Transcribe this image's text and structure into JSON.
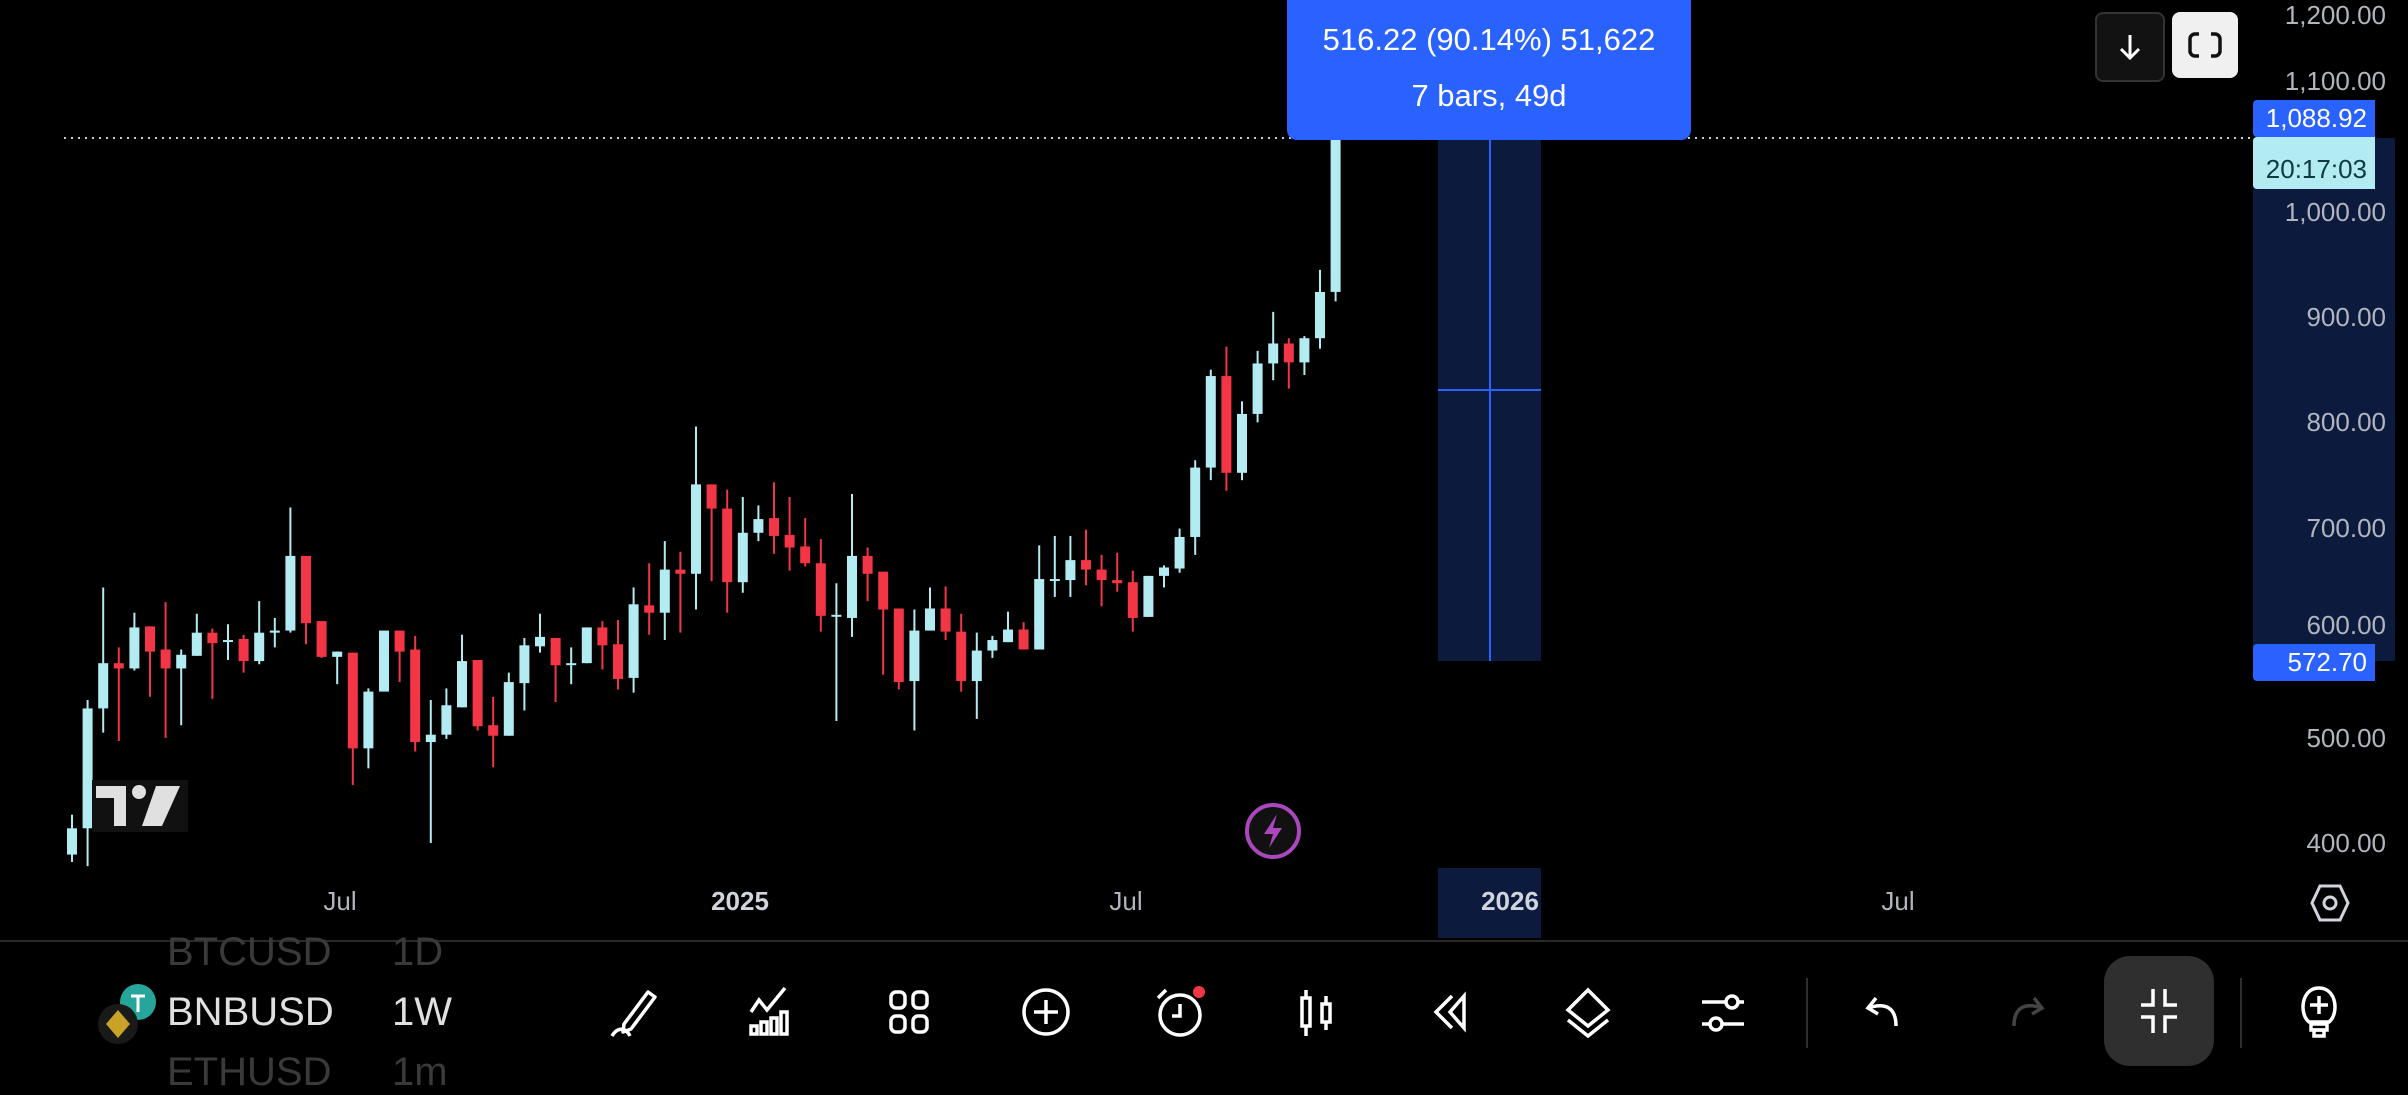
{
  "measure_tooltip": {
    "line1": "516.22 (90.14%) 51,622",
    "line2": "7 bars, 49d"
  },
  "price_axis": {
    "ticks": [
      "1,200.00",
      "1,100.00",
      "1,000.00",
      "900.00",
      "800.00",
      "700.00",
      "600.00",
      "500.00",
      "400.00"
    ],
    "measure_high_label": "1,088.92",
    "measure_low_label": "572.70",
    "countdown": "20:17:03"
  },
  "time_axis": {
    "ticks": [
      {
        "label": "Jul",
        "bold": false
      },
      {
        "label": "2025",
        "bold": true
      },
      {
        "label": "Jul",
        "bold": false
      },
      {
        "label": "2026",
        "bold": true
      },
      {
        "label": "Jul",
        "bold": false
      }
    ]
  },
  "top_buttons": {
    "scroll_down": "arrow-down-icon",
    "fullscreen": "fullscreen-icon"
  },
  "symbols": {
    "previous": {
      "ticker": "BTCUSD",
      "interval": "1D"
    },
    "current": {
      "ticker": "BNBUSD",
      "interval": "1W"
    },
    "next": {
      "ticker": "ETHUSD",
      "interval": "1m"
    }
  },
  "toolbar": [
    {
      "name": "drawing-tools",
      "icon": "pencil-icon"
    },
    {
      "name": "indicators",
      "icon": "indicator-chart-icon"
    },
    {
      "name": "layouts",
      "icon": "grid-icon"
    },
    {
      "name": "add",
      "icon": "plus-circle-icon"
    },
    {
      "name": "alerts",
      "icon": "alarm-clock-icon"
    },
    {
      "name": "chart-type",
      "icon": "candles-icon"
    },
    {
      "name": "replay",
      "icon": "rewind-icon"
    },
    {
      "name": "object-tree",
      "icon": "layers-icon"
    },
    {
      "name": "settings",
      "icon": "sliders-icon"
    },
    {
      "name": "undo",
      "icon": "undo-icon"
    },
    {
      "name": "redo",
      "icon": "redo-icon"
    },
    {
      "name": "exit-fullscreen",
      "icon": "collapse-icon"
    },
    {
      "name": "ideas",
      "icon": "lightbulb-plus-icon"
    }
  ],
  "colors": {
    "bull": "#b2ebf2",
    "bear": "#f23645",
    "accent": "#2962ff",
    "measure_fill": "#0b1a3d",
    "bolt": "#ab47bc"
  },
  "chart_data": {
    "type": "candlestick",
    "interval": "1W",
    "symbol": "BNBUSD",
    "ylim": [
      380,
      1210
    ],
    "y_ticks": [
      400,
      500,
      600,
      700,
      800,
      900,
      1000,
      1100,
      1200
    ],
    "x_ticks": [
      "Jul",
      "2025",
      "Jul",
      "2026",
      "Jul"
    ],
    "grid": false,
    "measure": {
      "from_price": 572.7,
      "to_price": 1088.92,
      "change": 516.22,
      "change_pct": 90.14,
      "bars": 7,
      "days": 49
    },
    "candles_ohlc": [
      [
        389,
        427,
        382,
        414
      ],
      [
        414,
        536,
        378,
        528
      ],
      [
        528,
        643,
        505,
        571
      ],
      [
        571,
        586,
        497,
        566
      ],
      [
        566,
        619,
        564,
        605
      ],
      [
        606,
        606,
        539,
        582
      ],
      [
        584,
        629,
        500,
        566
      ],
      [
        566,
        584,
        512,
        579
      ],
      [
        578,
        618,
        578,
        600
      ],
      [
        600,
        604,
        537,
        590
      ],
      [
        593,
        608,
        574,
        593
      ],
      [
        594,
        598,
        562,
        573
      ],
      [
        573,
        630,
        570,
        600
      ],
      [
        600,
        614,
        586,
        602
      ],
      [
        602,
        719,
        600,
        673
      ],
      [
        673,
        673,
        589,
        609
      ],
      [
        611,
        611,
        576,
        577
      ],
      [
        577,
        582,
        551,
        582
      ],
      [
        581,
        581,
        455,
        490
      ],
      [
        490,
        547,
        471,
        544
      ],
      [
        544,
        602,
        544,
        602
      ],
      [
        602,
        602,
        553,
        582
      ],
      [
        584,
        597,
        487,
        496
      ],
      [
        496,
        536,
        400,
        503
      ],
      [
        503,
        547,
        499,
        531
      ],
      [
        529,
        598,
        529,
        573
      ],
      [
        574,
        574,
        507,
        511
      ],
      [
        512,
        539,
        472,
        502
      ],
      [
        502,
        562,
        502,
        553
      ],
      [
        552,
        595,
        526,
        588
      ],
      [
        587,
        618,
        581,
        596
      ],
      [
        595,
        595,
        534,
        569
      ],
      [
        571,
        586,
        551,
        571
      ],
      [
        571,
        605,
        571,
        605
      ],
      [
        605,
        611,
        565,
        588
      ],
      [
        589,
        612,
        546,
        556
      ],
      [
        557,
        643,
        543,
        627
      ],
      [
        626,
        666,
        598,
        619
      ],
      [
        619,
        687,
        593,
        660
      ],
      [
        660,
        677,
        600,
        656
      ],
      [
        656,
        796,
        622,
        741
      ],
      [
        741,
        741,
        649,
        718
      ],
      [
        718,
        736,
        619,
        648
      ],
      [
        648,
        729,
        638,
        695
      ],
      [
        695,
        721,
        687,
        708
      ],
      [
        709,
        743,
        675,
        692
      ],
      [
        693,
        729,
        659,
        681
      ],
      [
        682,
        709,
        663,
        666
      ],
      [
        666,
        689,
        601,
        616
      ],
      [
        617,
        647,
        516,
        617
      ],
      [
        614,
        732,
        596,
        673
      ],
      [
        673,
        681,
        630,
        656
      ],
      [
        658,
        658,
        560,
        622
      ],
      [
        623,
        623,
        546,
        553
      ],
      [
        554,
        622,
        507,
        602
      ],
      [
        602,
        643,
        602,
        623
      ],
      [
        623,
        644,
        593,
        601
      ],
      [
        601,
        618,
        544,
        554
      ],
      [
        554,
        600,
        518,
        583
      ],
      [
        583,
        597,
        576,
        593
      ],
      [
        591,
        620,
        591,
        603
      ],
      [
        603,
        610,
        584,
        584
      ],
      [
        584,
        683,
        584,
        651
      ],
      [
        651,
        692,
        634,
        651
      ],
      [
        650,
        692,
        634,
        669
      ],
      [
        669,
        698,
        645,
        660
      ],
      [
        660,
        674,
        625,
        650
      ],
      [
        650,
        676,
        639,
        647
      ],
      [
        648,
        659,
        601,
        614
      ],
      [
        615,
        654,
        615,
        654
      ],
      [
        654,
        664,
        643,
        662
      ],
      [
        661,
        699,
        657,
        691
      ],
      [
        691,
        764,
        674,
        757
      ],
      [
        757,
        850,
        745,
        844
      ],
      [
        844,
        872,
        735,
        752
      ],
      [
        752,
        820,
        745,
        808
      ],
      [
        808,
        868,
        800,
        856
      ],
      [
        856,
        905,
        840,
        875
      ],
      [
        875,
        880,
        832,
        857
      ],
      [
        857,
        882,
        845,
        880
      ],
      [
        880,
        945,
        870,
        924
      ],
      [
        924,
        1089,
        915,
        1071
      ]
    ]
  }
}
